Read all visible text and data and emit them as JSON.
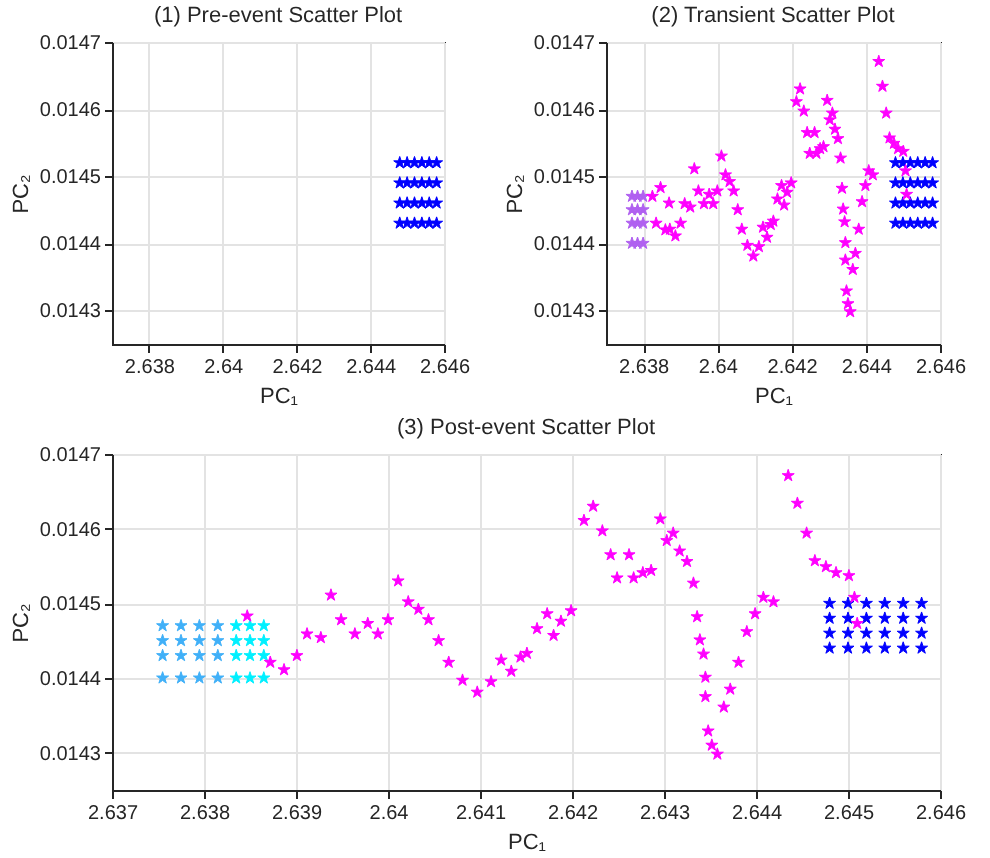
{
  "chart_data": [
    {
      "type": "scatter",
      "title": "(1) Pre-event Scatter Plot",
      "xlabel": "PC₁",
      "ylabel": "PC₂",
      "xlim": [
        2.637,
        2.646
      ],
      "ylim": [
        0.01425,
        0.0147
      ],
      "xticks": [
        2.638,
        2.64,
        2.642,
        2.644,
        2.646
      ],
      "yticks": [
        0.0143,
        0.0144,
        0.0145,
        0.0146,
        0.0147
      ],
      "grid": true,
      "marker": "star",
      "series": [
        {
          "color": "#0000ff",
          "x": [
            2.6448,
            2.645,
            2.6452,
            2.6454,
            2.6456,
            2.6458,
            2.6448,
            2.645,
            2.6452,
            2.6454,
            2.6456,
            2.6458,
            2.6448,
            2.645,
            2.6452,
            2.6454,
            2.6456,
            2.6458,
            2.6448,
            2.645,
            2.6452,
            2.6454,
            2.6456,
            2.6458
          ],
          "values": [
            0.01443,
            0.01443,
            0.01443,
            0.01443,
            0.01443,
            0.01443,
            0.01446,
            0.01446,
            0.01446,
            0.01446,
            0.01446,
            0.01446,
            0.01449,
            0.01449,
            0.01449,
            0.01449,
            0.01449,
            0.01449,
            0.01452,
            0.01452,
            0.01452,
            0.01452,
            0.01452,
            0.01452
          ]
        }
      ]
    },
    {
      "type": "scatter",
      "title": "(2) Transient Scatter Plot",
      "xlabel": "PC₁",
      "ylabel": "PC₂",
      "xlim": [
        2.637,
        2.646
      ],
      "ylim": [
        0.01425,
        0.0147
      ],
      "xticks": [
        2.638,
        2.64,
        2.642,
        2.644,
        2.646
      ],
      "yticks": [
        0.0143,
        0.0144,
        0.0145,
        0.0146,
        0.0147
      ],
      "grid": true,
      "marker": "star",
      "series": [
        {
          "color": "#0000ff",
          "x": [
            2.6448,
            2.645,
            2.6452,
            2.6454,
            2.6456,
            2.6458,
            2.6448,
            2.645,
            2.6452,
            2.6454,
            2.6456,
            2.6458,
            2.6448,
            2.645,
            2.6452,
            2.6454,
            2.6456,
            2.6458,
            2.6448,
            2.645,
            2.6452,
            2.6454,
            2.6456,
            2.6458
          ],
          "values": [
            0.01443,
            0.01443,
            0.01443,
            0.01443,
            0.01443,
            0.01443,
            0.01446,
            0.01446,
            0.01446,
            0.01446,
            0.01446,
            0.01446,
            0.01449,
            0.01449,
            0.01449,
            0.01449,
            0.01449,
            0.01449,
            0.01452,
            0.01452,
            0.01452,
            0.01452,
            0.01452,
            0.01452
          ]
        },
        {
          "color": "#b060f0",
          "x": [
            2.6377,
            2.63785,
            2.638,
            2.6377,
            2.63785,
            2.638,
            2.6377,
            2.63785,
            2.638,
            2.6377,
            2.63785,
            2.638
          ],
          "values": [
            0.0144,
            0.0144,
            0.0144,
            0.01443,
            0.01443,
            0.01443,
            0.01445,
            0.01445,
            0.01445,
            0.01447,
            0.01447,
            0.01447
          ]
        },
        {
          "color": "#ff00ff",
          "x": [
            2.63825,
            2.63835,
            2.6387,
            2.6386,
            2.63847,
            2.63872,
            2.63887,
            2.63901,
            2.63912,
            2.63927,
            2.63938,
            2.63949,
            2.63964,
            2.63978,
            2.63989,
            2.64,
            2.64011,
            2.64022,
            2.64033,
            2.64044,
            2.64055,
            2.64066,
            2.64081,
            2.64097,
            2.64112,
            2.64123,
            2.64134,
            2.64144,
            2.64151,
            2.64162,
            2.64173,
            2.6418,
            2.64188,
            2.64199,
            2.64213,
            2.64223,
            2.64233,
            2.64242,
            2.64249,
            2.64262,
            2.64267,
            2.64277,
            2.64286,
            2.64296,
            2.64303,
            2.6431,
            2.64317,
            2.64325,
            2.64332,
            2.64336,
            2.64339,
            2.64343,
            2.64345,
            2.64345,
            2.64348,
            2.64352,
            2.64358,
            2.64365,
            2.64372,
            2.64381,
            2.6439,
            2.64399,
            2.64408,
            2.64419,
            2.64435,
            2.64445,
            2.64455,
            2.64464,
            2.64476,
            2.64487,
            2.64501,
            2.64507,
            2.6451
          ],
          "values": [
            0.01447,
            0.01443,
            0.01446,
            0.01442,
            0.014483,
            0.014421,
            0.014411,
            0.01443,
            0.014459,
            0.014454,
            0.014511,
            0.014478,
            0.014459,
            0.014473,
            0.014459,
            0.014478,
            0.01453,
            0.014502,
            0.014492,
            0.014478,
            0.01445,
            0.014421,
            0.014397,
            0.014381,
            0.014395,
            0.014424,
            0.014409,
            0.014428,
            0.014433,
            0.014466,
            0.014486,
            0.014457,
            0.014476,
            0.01449,
            0.014611,
            0.01463,
            0.014597,
            0.014565,
            0.014534,
            0.014565,
            0.014534,
            0.014541,
            0.014544,
            0.014613,
            0.014584,
            0.014594,
            0.01457,
            0.014556,
            0.014527,
            0.014482,
            0.014451,
            0.014432,
            0.014401,
            0.014375,
            0.014329,
            0.01431,
            0.014298,
            0.014361,
            0.014385,
            0.014421,
            0.014462,
            0.014486,
            0.014508,
            0.014502,
            0.014671,
            0.014634,
            0.014594,
            0.014557,
            0.014549,
            0.014541,
            0.014537,
            0.014508,
            0.014473
          ]
        }
      ]
    },
    {
      "type": "scatter",
      "title": "(3) Post-event Scatter Plot",
      "xlabel": "PC₁",
      "ylabel": "PC₂",
      "xlim": [
        2.637,
        2.646
      ],
      "ylim": [
        0.01425,
        0.0147
      ],
      "xticks": [
        2.637,
        2.638,
        2.639,
        2.64,
        2.641,
        2.642,
        2.643,
        2.644,
        2.645,
        2.646
      ],
      "yticks": [
        0.0143,
        0.0144,
        0.0145,
        0.0146,
        0.0147
      ],
      "grid": true,
      "marker": "star",
      "series": [
        {
          "color": "#0000ff",
          "x": [
            2.6448,
            2.645,
            2.6452,
            2.6454,
            2.6456,
            2.6458,
            2.6448,
            2.645,
            2.6452,
            2.6454,
            2.6456,
            2.6458,
            2.6448,
            2.645,
            2.6452,
            2.6454,
            2.6456,
            2.6458,
            2.6448,
            2.645,
            2.6452,
            2.6454,
            2.6456,
            2.6458
          ],
          "values": [
            0.01444,
            0.01444,
            0.01444,
            0.01444,
            0.01444,
            0.01444,
            0.01446,
            0.01446,
            0.01446,
            0.01446,
            0.01446,
            0.01446,
            0.01448,
            0.01448,
            0.01448,
            0.01448,
            0.01448,
            0.01448,
            0.0145,
            0.0145,
            0.0145,
            0.0145,
            0.0145,
            0.0145
          ]
        },
        {
          "color": "#40b0f8",
          "x": [
            2.63755,
            2.63775,
            2.63795,
            2.63815,
            2.63755,
            2.63775,
            2.63795,
            2.63815,
            2.63755,
            2.63775,
            2.63795,
            2.63815,
            2.63755,
            2.63775,
            2.63795,
            2.63815
          ],
          "values": [
            0.0144,
            0.0144,
            0.0144,
            0.0144,
            0.01443,
            0.01443,
            0.01443,
            0.01443,
            0.01445,
            0.01445,
            0.01445,
            0.01445,
            0.01447,
            0.01447,
            0.01447,
            0.01447
          ]
        },
        {
          "color": "#00f0ff",
          "x": [
            2.63835,
            2.6385,
            2.63865,
            2.63835,
            2.6385,
            2.63865,
            2.63835,
            2.6385,
            2.63865,
            2.63835,
            2.6385,
            2.63865
          ],
          "values": [
            0.0144,
            0.0144,
            0.0144,
            0.01443,
            0.01443,
            0.01443,
            0.01445,
            0.01445,
            0.01445,
            0.01447,
            0.01447,
            0.01447
          ]
        },
        {
          "color": "#ff00ff",
          "x": [
            2.63847,
            2.63872,
            2.63887,
            2.63901,
            2.63912,
            2.63927,
            2.63938,
            2.63949,
            2.63964,
            2.63978,
            2.63989,
            2.64,
            2.64011,
            2.64022,
            2.64033,
            2.64044,
            2.64055,
            2.64066,
            2.64081,
            2.64097,
            2.64112,
            2.64123,
            2.64134,
            2.64144,
            2.64151,
            2.64162,
            2.64173,
            2.6418,
            2.64188,
            2.64199,
            2.64213,
            2.64223,
            2.64233,
            2.64242,
            2.64249,
            2.64262,
            2.64267,
            2.64277,
            2.64286,
            2.64296,
            2.64303,
            2.6431,
            2.64317,
            2.64325,
            2.64332,
            2.64336,
            2.64339,
            2.64343,
            2.64345,
            2.64345,
            2.64348,
            2.64352,
            2.64358,
            2.64365,
            2.64372,
            2.64381,
            2.6439,
            2.64399,
            2.64408,
            2.64419,
            2.64435,
            2.64445,
            2.64455,
            2.64464,
            2.64476,
            2.64487,
            2.64501,
            2.64507,
            2.6451
          ],
          "values": [
            0.014483,
            0.014421,
            0.014411,
            0.01443,
            0.014459,
            0.014454,
            0.014511,
            0.014478,
            0.014459,
            0.014473,
            0.014459,
            0.014478,
            0.01453,
            0.014502,
            0.014492,
            0.014478,
            0.01445,
            0.014421,
            0.014397,
            0.014381,
            0.014395,
            0.014424,
            0.014409,
            0.014428,
            0.014433,
            0.014466,
            0.014486,
            0.014457,
            0.014476,
            0.01449,
            0.014611,
            0.01463,
            0.014597,
            0.014565,
            0.014534,
            0.014565,
            0.014534,
            0.014541,
            0.014544,
            0.014613,
            0.014584,
            0.014594,
            0.01457,
            0.014556,
            0.014527,
            0.014482,
            0.014451,
            0.014432,
            0.014401,
            0.014375,
            0.014329,
            0.01431,
            0.014298,
            0.014361,
            0.014385,
            0.014421,
            0.014462,
            0.014486,
            0.014508,
            0.014502,
            0.014671,
            0.014634,
            0.014594,
            0.014557,
            0.014549,
            0.014541,
            0.014537,
            0.014508,
            0.014473
          ]
        }
      ]
    }
  ]
}
